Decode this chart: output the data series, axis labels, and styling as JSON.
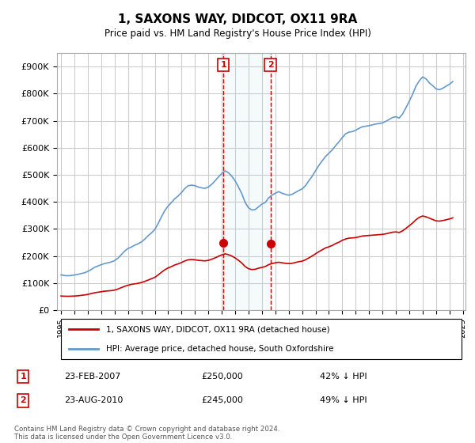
{
  "title": "1, SAXONS WAY, DIDCOT, OX11 9RA",
  "subtitle": "Price paid vs. HM Land Registry's House Price Index (HPI)",
  "xlabel": "",
  "ylabel": "",
  "ylim": [
    0,
    950000
  ],
  "yticks": [
    0,
    100000,
    200000,
    300000,
    400000,
    500000,
    600000,
    700000,
    800000,
    900000
  ],
  "ytick_labels": [
    "£0",
    "£100K",
    "£200K",
    "£300K",
    "£400K",
    "£500K",
    "£600K",
    "£700K",
    "£800K",
    "£900K"
  ],
  "background_color": "#ffffff",
  "grid_color": "#cccccc",
  "hpi_color": "#6699cc",
  "price_color": "#cc0000",
  "sale1_date": "23-FEB-2007",
  "sale1_price": 250000,
  "sale1_pct": "42%",
  "sale2_date": "23-AUG-2010",
  "sale2_price": 245000,
  "sale2_pct": "49%",
  "legend_label1": "1, SAXONS WAY, DIDCOT, OX11 9RA (detached house)",
  "legend_label2": "HPI: Average price, detached house, South Oxfordshire",
  "footer": "Contains HM Land Registry data © Crown copyright and database right 2024.\nThis data is licensed under the Open Government Licence v3.0.",
  "hpi_data": {
    "years": [
      1995.0,
      1995.25,
      1995.5,
      1995.75,
      1996.0,
      1996.25,
      1996.5,
      1996.75,
      1997.0,
      1997.25,
      1997.5,
      1997.75,
      1998.0,
      1998.25,
      1998.5,
      1998.75,
      1999.0,
      1999.25,
      1999.5,
      1999.75,
      2000.0,
      2000.25,
      2000.5,
      2000.75,
      2001.0,
      2001.25,
      2001.5,
      2001.75,
      2002.0,
      2002.25,
      2002.5,
      2002.75,
      2003.0,
      2003.25,
      2003.5,
      2003.75,
      2004.0,
      2004.25,
      2004.5,
      2004.75,
      2005.0,
      2005.25,
      2005.5,
      2005.75,
      2006.0,
      2006.25,
      2006.5,
      2006.75,
      2007.0,
      2007.25,
      2007.5,
      2007.75,
      2008.0,
      2008.25,
      2008.5,
      2008.75,
      2009.0,
      2009.25,
      2009.5,
      2009.75,
      2010.0,
      2010.25,
      2010.5,
      2010.75,
      2011.0,
      2011.25,
      2011.5,
      2011.75,
      2012.0,
      2012.25,
      2012.5,
      2012.75,
      2013.0,
      2013.25,
      2013.5,
      2013.75,
      2014.0,
      2014.25,
      2014.5,
      2014.75,
      2015.0,
      2015.25,
      2015.5,
      2015.75,
      2016.0,
      2016.25,
      2016.5,
      2016.75,
      2017.0,
      2017.25,
      2017.5,
      2017.75,
      2018.0,
      2018.25,
      2018.5,
      2018.75,
      2019.0,
      2019.25,
      2019.5,
      2019.75,
      2020.0,
      2020.25,
      2020.5,
      2020.75,
      2021.0,
      2021.25,
      2021.5,
      2021.75,
      2022.0,
      2022.25,
      2022.5,
      2022.75,
      2023.0,
      2023.25,
      2023.5,
      2023.75,
      2024.0,
      2024.25
    ],
    "values": [
      130000,
      128000,
      127000,
      128000,
      130000,
      132000,
      135000,
      138000,
      143000,
      150000,
      158000,
      163000,
      168000,
      172000,
      175000,
      178000,
      183000,
      192000,
      205000,
      218000,
      228000,
      233000,
      240000,
      245000,
      252000,
      262000,
      275000,
      285000,
      298000,
      320000,
      345000,
      368000,
      385000,
      398000,
      412000,
      422000,
      435000,
      450000,
      460000,
      462000,
      460000,
      455000,
      452000,
      450000,
      455000,
      465000,
      478000,
      492000,
      505000,
      515000,
      508000,
      495000,
      478000,
      455000,
      430000,
      398000,
      378000,
      370000,
      372000,
      382000,
      392000,
      398000,
      415000,
      425000,
      432000,
      438000,
      432000,
      428000,
      425000,
      428000,
      435000,
      442000,
      448000,
      460000,
      478000,
      495000,
      515000,
      535000,
      552000,
      568000,
      580000,
      592000,
      608000,
      622000,
      638000,
      652000,
      658000,
      660000,
      665000,
      672000,
      678000,
      680000,
      682000,
      685000,
      688000,
      690000,
      692000,
      698000,
      705000,
      712000,
      715000,
      710000,
      725000,
      748000,
      772000,
      798000,
      828000,
      848000,
      862000,
      855000,
      840000,
      830000,
      818000,
      815000,
      820000,
      828000,
      835000,
      845000
    ]
  },
  "price_data": {
    "years": [
      1995.0,
      1995.25,
      1995.5,
      1995.75,
      1996.0,
      1996.25,
      1996.5,
      1996.75,
      1997.0,
      1997.25,
      1997.5,
      1997.75,
      1998.0,
      1998.25,
      1998.5,
      1998.75,
      1999.0,
      1999.25,
      1999.5,
      1999.75,
      2000.0,
      2000.25,
      2000.5,
      2000.75,
      2001.0,
      2001.25,
      2001.5,
      2001.75,
      2002.0,
      2002.25,
      2002.5,
      2002.75,
      2003.0,
      2003.25,
      2003.5,
      2003.75,
      2004.0,
      2004.25,
      2004.5,
      2004.75,
      2005.0,
      2005.25,
      2005.5,
      2005.75,
      2006.0,
      2006.25,
      2006.5,
      2006.75,
      2007.0,
      2007.25,
      2007.5,
      2007.75,
      2008.0,
      2008.25,
      2008.5,
      2008.75,
      2009.0,
      2009.25,
      2009.5,
      2009.75,
      2010.0,
      2010.25,
      2010.5,
      2010.75,
      2011.0,
      2011.25,
      2011.5,
      2011.75,
      2012.0,
      2012.25,
      2012.5,
      2012.75,
      2013.0,
      2013.25,
      2013.5,
      2013.75,
      2014.0,
      2014.25,
      2014.5,
      2014.75,
      2015.0,
      2015.25,
      2015.5,
      2015.75,
      2016.0,
      2016.25,
      2016.5,
      2016.75,
      2017.0,
      2017.25,
      2017.5,
      2017.75,
      2018.0,
      2018.25,
      2018.5,
      2018.75,
      2019.0,
      2019.25,
      2019.5,
      2019.75,
      2020.0,
      2020.25,
      2020.5,
      2020.75,
      2021.0,
      2021.25,
      2021.5,
      2021.75,
      2022.0,
      2022.25,
      2022.5,
      2022.75,
      2023.0,
      2023.25,
      2023.5,
      2023.75,
      2024.0,
      2024.25
    ],
    "values": [
      52000,
      51500,
      51000,
      51500,
      52000,
      53000,
      54500,
      56000,
      58000,
      61000,
      64000,
      66000,
      68000,
      70000,
      71000,
      72000,
      74000,
      78000,
      83000,
      88000,
      92000,
      95000,
      97000,
      99000,
      102000,
      106000,
      111000,
      116000,
      121000,
      130000,
      140000,
      149000,
      156000,
      161000,
      167000,
      171000,
      176000,
      182000,
      186000,
      187000,
      186000,
      184000,
      183000,
      182000,
      184000,
      188000,
      193000,
      199000,
      204000,
      208000,
      205000,
      200000,
      193000,
      184000,
      174000,
      161000,
      153000,
      150000,
      151000,
      155000,
      158000,
      161000,
      168000,
      172000,
      175000,
      177000,
      175000,
      173000,
      172000,
      173000,
      176000,
      179000,
      181000,
      186000,
      193000,
      200000,
      208000,
      216000,
      223000,
      230000,
      234000,
      239000,
      246000,
      251000,
      258000,
      263000,
      266000,
      267000,
      268000,
      271000,
      274000,
      275000,
      276000,
      277000,
      278000,
      279000,
      280000,
      282000,
      285000,
      288000,
      289000,
      287000,
      293000,
      302000,
      312000,
      322000,
      334000,
      343000,
      348000,
      345000,
      340000,
      335000,
      330000,
      329000,
      331000,
      334000,
      337000,
      341000
    ]
  },
  "sale1_year": 2007.12,
  "sale2_year": 2010.64,
  "xlim_start": 1994.7,
  "xlim_end": 2025.2
}
